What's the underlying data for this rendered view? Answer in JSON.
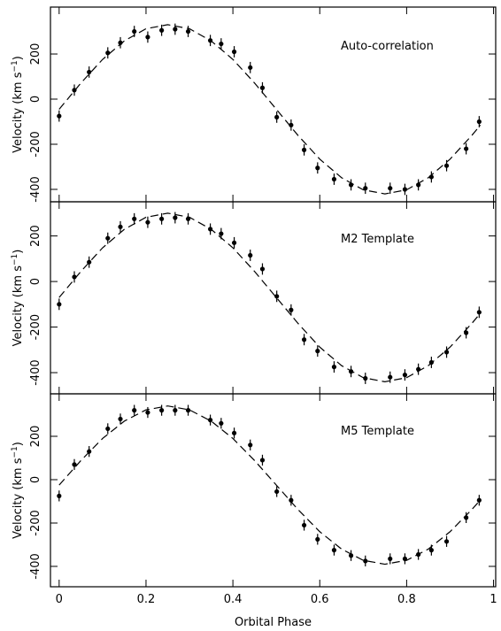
{
  "chart_data": [
    {
      "type": "scatter",
      "annotation": "Auto-correlation",
      "ylabel": [
        "Velocity (km s",
        "−1",
        ")"
      ],
      "xlim": [
        -0.02,
        1.005
      ],
      "ylim": [
        -455,
        408
      ],
      "xticks": [
        0,
        0.2,
        0.4,
        0.6,
        0.8,
        1
      ],
      "yticks": [
        -400,
        -200,
        0,
        200
      ],
      "xticklabels": false,
      "color": "#000000",
      "points": {
        "x": [
          0,
          0.035,
          0.069,
          0.112,
          0.141,
          0.173,
          0.204,
          0.236,
          0.267,
          0.297,
          0.348,
          0.373,
          0.403,
          0.44,
          0.468,
          0.501,
          0.534,
          0.564,
          0.595,
          0.633,
          0.672,
          0.705,
          0.762,
          0.796,
          0.827,
          0.857,
          0.892,
          0.937,
          0.967
        ],
        "values": [
          -75,
          40,
          120,
          205,
          250,
          300,
          275,
          305,
          310,
          300,
          260,
          245,
          210,
          140,
          50,
          -80,
          -115,
          -225,
          -305,
          -355,
          -380,
          -395,
          -395,
          -400,
          -380,
          -345,
          -295,
          -220,
          -100
        ],
        "errors": [
          25,
          25,
          25,
          25,
          25,
          25,
          25,
          25,
          25,
          25,
          25,
          25,
          25,
          25,
          25,
          25,
          25,
          25,
          25,
          25,
          25,
          25,
          25,
          25,
          25,
          25,
          25,
          25,
          25
        ]
      },
      "curve": {
        "dashed": true,
        "x": [
          0,
          0.05,
          0.1,
          0.15,
          0.2,
          0.25,
          0.3,
          0.35,
          0.4,
          0.45,
          0.5,
          0.55,
          0.6,
          0.65,
          0.7,
          0.75,
          0.8,
          0.85,
          0.9,
          0.95,
          0.97
        ],
        "values": [
          -45,
          71,
          176,
          258,
          312,
          330,
          312,
          258,
          176,
          71,
          -45,
          -161,
          -266,
          -348,
          -402,
          -420,
          -402,
          -348,
          -266,
          -161,
          -115
        ]
      }
    },
    {
      "type": "scatter",
      "annotation": "M2 Template",
      "ylabel": [
        "Velocity (km s",
        "−1",
        ")"
      ],
      "xlim": [
        -0.02,
        1.005
      ],
      "ylim": [
        -493,
        350
      ],
      "xticks": [
        0,
        0.2,
        0.4,
        0.6,
        0.8,
        1
      ],
      "yticks": [
        -400,
        -200,
        0,
        200
      ],
      "xticklabels": false,
      "color": "#000000",
      "points": {
        "x": [
          0,
          0.035,
          0.069,
          0.112,
          0.141,
          0.173,
          0.204,
          0.236,
          0.267,
          0.297,
          0.348,
          0.373,
          0.403,
          0.44,
          0.468,
          0.501,
          0.534,
          0.564,
          0.595,
          0.633,
          0.672,
          0.705,
          0.762,
          0.796,
          0.827,
          0.857,
          0.892,
          0.937,
          0.967
        ],
        "values": [
          -100,
          20,
          85,
          190,
          240,
          275,
          260,
          275,
          280,
          275,
          230,
          210,
          170,
          115,
          55,
          -65,
          -125,
          -255,
          -305,
          -375,
          -395,
          -425,
          -420,
          -410,
          -385,
          -355,
          -310,
          -225,
          -135
        ],
        "errors": [
          25,
          25,
          25,
          25,
          25,
          25,
          25,
          25,
          25,
          25,
          25,
          25,
          25,
          25,
          25,
          25,
          25,
          25,
          25,
          25,
          25,
          25,
          25,
          25,
          25,
          25,
          25,
          25,
          25
        ]
      },
      "curve": {
        "dashed": true,
        "x": [
          0,
          0.05,
          0.1,
          0.15,
          0.2,
          0.25,
          0.3,
          0.35,
          0.4,
          0.45,
          0.5,
          0.55,
          0.6,
          0.65,
          0.7,
          0.75,
          0.8,
          0.85,
          0.9,
          0.95,
          0.97
        ],
        "values": [
          -70,
          44,
          148,
          229,
          282,
          300,
          282,
          229,
          148,
          44,
          -70,
          -184,
          -288,
          -369,
          -422,
          -440,
          -422,
          -369,
          -288,
          -184,
          -139
        ]
      }
    },
    {
      "type": "scatter",
      "annotation": "M5 Template",
      "ylabel": [
        "Velocity (km s",
        "−1",
        ")"
      ],
      "xlabel": "Orbital Phase",
      "xlim": [
        -0.02,
        1.005
      ],
      "ylim": [
        -494,
        396
      ],
      "xticks": [
        0,
        0.2,
        0.4,
        0.6,
        0.8,
        1
      ],
      "yticks": [
        -400,
        -200,
        0,
        200
      ],
      "xticklabels": true,
      "color": "#000000",
      "points": {
        "x": [
          0,
          0.035,
          0.069,
          0.112,
          0.141,
          0.173,
          0.204,
          0.236,
          0.267,
          0.297,
          0.348,
          0.373,
          0.403,
          0.44,
          0.468,
          0.501,
          0.534,
          0.564,
          0.595,
          0.633,
          0.672,
          0.705,
          0.762,
          0.796,
          0.827,
          0.857,
          0.892,
          0.937,
          0.967
        ],
        "values": [
          -75,
          70,
          130,
          235,
          280,
          320,
          310,
          320,
          320,
          320,
          275,
          260,
          215,
          160,
          90,
          -55,
          -95,
          -210,
          -275,
          -325,
          -350,
          -375,
          -365,
          -365,
          -345,
          -325,
          -285,
          -175,
          -95
        ],
        "errors": [
          25,
          25,
          25,
          25,
          25,
          25,
          25,
          25,
          25,
          25,
          25,
          25,
          25,
          25,
          25,
          25,
          25,
          25,
          25,
          25,
          25,
          25,
          25,
          25,
          25,
          25,
          25,
          25,
          25
        ]
      },
      "curve": {
        "dashed": true,
        "x": [
          0,
          0.05,
          0.1,
          0.15,
          0.2,
          0.25,
          0.3,
          0.35,
          0.4,
          0.45,
          0.5,
          0.55,
          0.6,
          0.65,
          0.7,
          0.75,
          0.8,
          0.85,
          0.9,
          0.95,
          0.97
        ],
        "values": [
          -25,
          88,
          190,
          270,
          322,
          340,
          322,
          270,
          190,
          88,
          -25,
          -138,
          -240,
          -320,
          -372,
          -390,
          -372,
          -320,
          -240,
          -138,
          -93
        ]
      }
    }
  ]
}
